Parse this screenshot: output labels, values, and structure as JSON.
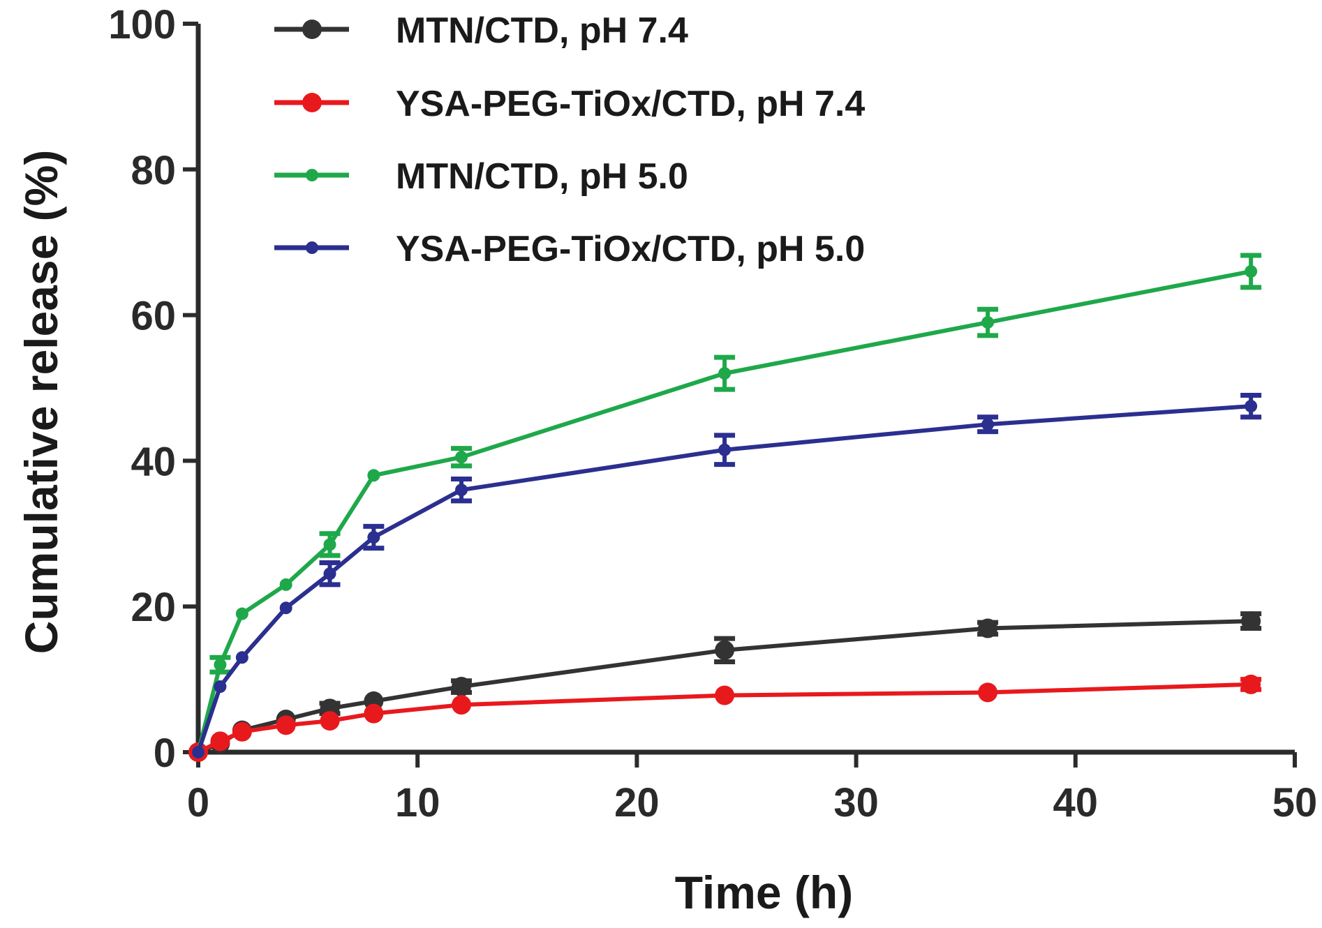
{
  "chart_data": {
    "type": "line",
    "xlabel": "Time (h)",
    "ylabel": "Cumulative release (%)",
    "xlim": [
      0,
      50
    ],
    "ylim": [
      0,
      100
    ],
    "xticks": [
      "0",
      "10",
      "20",
      "30",
      "40",
      "50"
    ],
    "yticks": [
      "0",
      "20",
      "40",
      "60",
      "80",
      "100"
    ],
    "grid": false,
    "legend_position": "top-left",
    "x": [
      0,
      1,
      2,
      4,
      6,
      8,
      12,
      24,
      36,
      48
    ],
    "series": [
      {
        "name": "MTN/CTD, pH 7.4",
        "color": "#333333",
        "marker_size": "large",
        "values": [
          0,
          1.2,
          3.0,
          4.5,
          6.0,
          7.0,
          9.0,
          14.0,
          17.0,
          18.0
        ],
        "errors": [
          0,
          0.4,
          0.5,
          0.6,
          0.7,
          0.6,
          0.8,
          1.6,
          0.8,
          1.0
        ]
      },
      {
        "name": "YSA-PEG-TiOx/CTD, pH 7.4",
        "color": "#e8191d",
        "marker_size": "large",
        "values": [
          0,
          1.5,
          2.8,
          3.7,
          4.3,
          5.3,
          6.5,
          7.8,
          8.2,
          9.3
        ],
        "errors": [
          0,
          0.4,
          0.5,
          0.5,
          0.6,
          0.5,
          0.6,
          0.6,
          0.6,
          0.7
        ]
      },
      {
        "name": "MTN/CTD, pH 5.0",
        "color": "#1fa84a",
        "marker_size": "small",
        "values": [
          0,
          12.0,
          19.0,
          23.0,
          28.5,
          38.0,
          40.5,
          52.0,
          59.0,
          66.0
        ],
        "errors": [
          0,
          1.0,
          0.6,
          0.5,
          1.5,
          0.6,
          1.2,
          2.2,
          1.8,
          2.2
        ]
      },
      {
        "name": "YSA-PEG-TiOx/CTD, pH 5.0",
        "color": "#2b2f8f",
        "marker_size": "small",
        "values": [
          0,
          9.0,
          13.0,
          19.8,
          24.5,
          29.5,
          36.0,
          41.5,
          45.0,
          47.5
        ],
        "errors": [
          0,
          0.5,
          0.5,
          0.5,
          1.5,
          1.5,
          1.5,
          2.0,
          1.0,
          1.5
        ]
      }
    ]
  }
}
